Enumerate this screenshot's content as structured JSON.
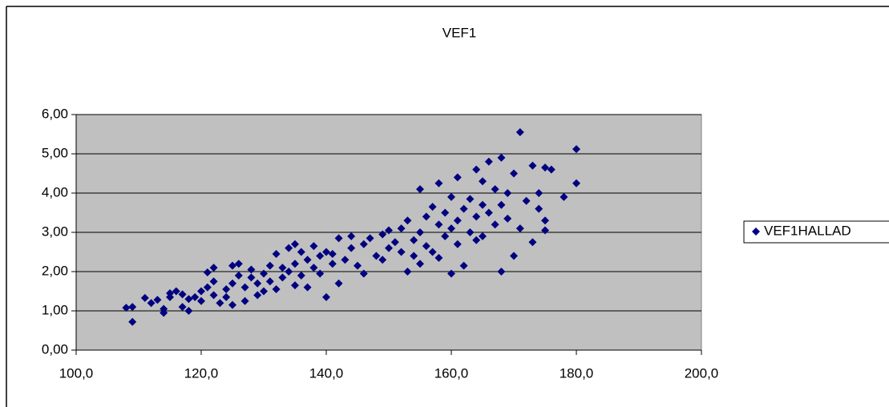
{
  "chart_data": {
    "type": "scatter",
    "title": "VEF1",
    "x": [
      108,
      109,
      109,
      111,
      112,
      113,
      114,
      114,
      115,
      115,
      116,
      117,
      117,
      118,
      118,
      119,
      120,
      120,
      121,
      121,
      122,
      122,
      122,
      123,
      124,
      124,
      125,
      125,
      125,
      126,
      126,
      127,
      127,
      128,
      128,
      129,
      129,
      130,
      130,
      131,
      131,
      132,
      132,
      133,
      133,
      134,
      134,
      135,
      135,
      135,
      136,
      136,
      137,
      137,
      138,
      138,
      139,
      139,
      140,
      140,
      141,
      141,
      142,
      142,
      143,
      144,
      144,
      145,
      146,
      146,
      147,
      148,
      149,
      149,
      150,
      150,
      151,
      152,
      152,
      153,
      153,
      154,
      154,
      155,
      155,
      155,
      156,
      156,
      157,
      157,
      158,
      158,
      158,
      159,
      159,
      160,
      160,
      160,
      161,
      161,
      161,
      162,
      162,
      163,
      163,
      164,
      164,
      164,
      165,
      165,
      165,
      166,
      166,
      167,
      167,
      168,
      168,
      168,
      169,
      169,
      170,
      170,
      171,
      171,
      172,
      173,
      173,
      174,
      174,
      175,
      175,
      175,
      176,
      178,
      180,
      180
    ],
    "series": [
      {
        "name": "VEF1HALLAD",
        "color": "#000080",
        "values": [
          1.08,
          0.72,
          1.1,
          1.33,
          1.2,
          1.28,
          0.95,
          1.05,
          1.45,
          1.35,
          1.5,
          1.1,
          1.42,
          1.0,
          1.3,
          1.35,
          1.5,
          1.25,
          1.6,
          1.98,
          1.4,
          2.1,
          1.75,
          1.2,
          1.55,
          1.35,
          2.15,
          1.7,
          1.15,
          1.9,
          2.2,
          1.25,
          1.6,
          1.85,
          2.05,
          1.4,
          1.7,
          1.95,
          1.5,
          2.15,
          1.75,
          2.45,
          1.55,
          1.85,
          2.1,
          2.0,
          2.6,
          1.65,
          2.2,
          2.7,
          1.9,
          2.5,
          2.3,
          1.6,
          2.65,
          2.1,
          2.4,
          1.95,
          2.5,
          1.35,
          2.2,
          2.45,
          2.85,
          1.7,
          2.3,
          2.6,
          2.9,
          2.15,
          2.7,
          1.95,
          2.85,
          2.4,
          2.95,
          2.3,
          2.6,
          3.05,
          2.75,
          2.5,
          3.1,
          2.0,
          3.3,
          2.8,
          2.4,
          4.1,
          3.0,
          2.2,
          3.4,
          2.65,
          3.65,
          2.5,
          3.2,
          4.25,
          2.35,
          3.5,
          2.9,
          3.9,
          3.1,
          1.95,
          4.4,
          3.3,
          2.7,
          3.6,
          2.15,
          3.85,
          3.0,
          4.6,
          3.4,
          2.8,
          3.7,
          4.3,
          2.9,
          4.8,
          3.5,
          4.1,
          3.2,
          4.9,
          2.0,
          3.7,
          4.0,
          3.35,
          4.5,
          2.4,
          5.55,
          3.1,
          3.8,
          4.7,
          2.75,
          4.0,
          3.6,
          4.65,
          3.05,
          3.3,
          4.6,
          3.9,
          5.12,
          4.25
        ]
      }
    ],
    "xlim": [
      100,
      200
    ],
    "xticks": [
      {
        "value": 100,
        "label": "100,0"
      },
      {
        "value": 120,
        "label": "120,0"
      },
      {
        "value": 140,
        "label": "140,0"
      },
      {
        "value": 160,
        "label": "160,0"
      },
      {
        "value": 180,
        "label": "180,0"
      },
      {
        "value": 200,
        "label": "200,0"
      }
    ],
    "ylim": [
      0,
      6
    ],
    "yticks": [
      {
        "value": 0,
        "label": "0,00"
      },
      {
        "value": 1,
        "label": "1,00"
      },
      {
        "value": 2,
        "label": "2,00"
      },
      {
        "value": 3,
        "label": "3,00"
      },
      {
        "value": 4,
        "label": "4,00"
      },
      {
        "value": 5,
        "label": "5,00"
      },
      {
        "value": 6,
        "label": "6,00"
      }
    ],
    "grid": true,
    "legend": "right"
  }
}
